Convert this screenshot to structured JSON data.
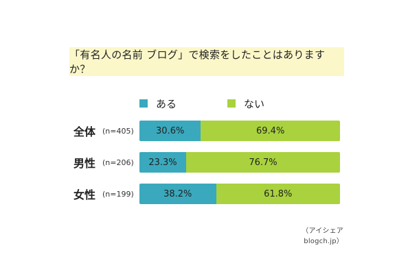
{
  "title": "「有名人の名前 ブログ」で検索をしたことはありますか？",
  "legend": [
    {
      "label": "ある",
      "color": "#3aa9bd"
    },
    {
      "label": "ない",
      "color": "#a9d23e"
    }
  ],
  "source": "（アイシェア blogch.jp）",
  "chart_data": {
    "type": "bar",
    "orientation": "horizontal",
    "stacked": true,
    "title": "「有名人の名前 ブログ」で検索をしたことはありますか？",
    "categories": [
      {
        "name": "全体",
        "n": "(n=405)"
      },
      {
        "name": "男性",
        "n": "(n=206)"
      },
      {
        "name": "女性",
        "n": "(n=199)"
      }
    ],
    "series": [
      {
        "name": "ある",
        "color": "#3aa9bd",
        "values": [
          30.6,
          23.3,
          38.2
        ],
        "labels": [
          "30.6%",
          "23.3%",
          "38.2%"
        ]
      },
      {
        "name": "ない",
        "color": "#a9d23e",
        "values": [
          69.4,
          76.7,
          61.8
        ],
        "labels": [
          "69.4%",
          "76.7%",
          "61.8%"
        ]
      }
    ],
    "xlim": [
      0,
      100
    ],
    "legend_position": "top"
  }
}
